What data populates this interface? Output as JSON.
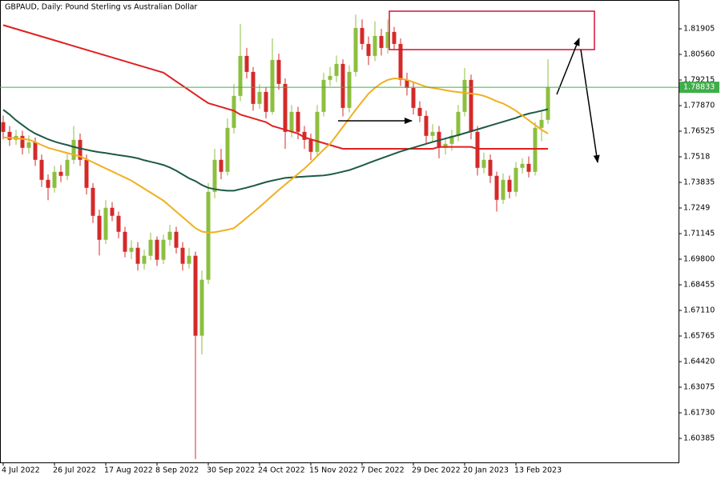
{
  "chart_data": {
    "type": "candlestick",
    "title": "GBPAUD, Daily:  Pound Sterling vs Australian Dollar",
    "categories": [
      "4 Jul 2022",
      null,
      null,
      null,
      null,
      null,
      null,
      null,
      "26 Jul 2022",
      null,
      null,
      null,
      null,
      null,
      null,
      null,
      "17 Aug 2022",
      null,
      null,
      null,
      null,
      null,
      null,
      null,
      "8 Sep 2022",
      null,
      null,
      null,
      null,
      null,
      null,
      null,
      "30 Sep 2022",
      null,
      null,
      null,
      null,
      null,
      null,
      null,
      "24 Oct 2022",
      null,
      null,
      null,
      null,
      null,
      null,
      null,
      "15 Nov 2022",
      null,
      null,
      null,
      null,
      null,
      null,
      null,
      "7 Dec 2022",
      null,
      null,
      null,
      null,
      null,
      null,
      null,
      "29 Dec 2022",
      null,
      null,
      null,
      null,
      null,
      null,
      null,
      "20 Jan 2023",
      null,
      null,
      null,
      null,
      null,
      null,
      null,
      "13 Feb 2023",
      null,
      null,
      null,
      null,
      null
    ],
    "open": [
      1.77,
      1.7649,
      1.7607,
      1.7628,
      1.7565,
      1.7594,
      1.7502,
      1.7397,
      1.7355,
      1.7439,
      1.7418,
      1.7502,
      1.7607,
      1.7502,
      1.7355,
      1.7208,
      1.7082,
      1.725,
      1.7208,
      1.7124,
      1.7019,
      1.704,
      1.6956,
      1.6998,
      1.7082,
      1.6977,
      1.7082,
      1.7124,
      1.704,
      1.6956,
      1.6998,
      1.6578,
      1.6872,
      1.7334,
      1.7502,
      1.7439,
      1.767,
      1.7838,
      1.8048,
      1.7964,
      1.7796,
      1.7859,
      1.7754,
      1.8027,
      1.7901,
      1.7649,
      1.7754,
      1.7649,
      1.7607,
      1.7544,
      1.7754,
      1.7922,
      1.7943,
      1.8006,
      1.7775,
      1.7964,
      1.8195,
      1.8111,
      1.8048,
      1.8153,
      1.809,
      1.8174,
      1.8111,
      1.7922,
      1.788,
      1.7775,
      1.7733,
      1.7628,
      1.7649,
      1.7565,
      1.7586,
      1.7628,
      1.7754,
      1.7922,
      1.7649,
      1.746,
      1.7502,
      1.7418,
      1.7292,
      1.7397,
      1.7334,
      1.746,
      1.7481,
      1.7439,
      1.767,
      1.7712
    ],
    "high": [
      1.7735,
      1.768,
      1.766,
      1.7655,
      1.763,
      1.762,
      1.753,
      1.7425,
      1.747,
      1.7475,
      1.754,
      1.768,
      1.764,
      1.753,
      1.738,
      1.724,
      1.729,
      1.728,
      1.723,
      1.715,
      1.708,
      1.707,
      1.703,
      1.712,
      1.71,
      1.711,
      1.716,
      1.715,
      1.707,
      1.704,
      1.702,
      1.692,
      1.738,
      1.756,
      1.756,
      1.772,
      1.79,
      1.8215,
      1.809,
      1.799,
      1.79,
      1.7885,
      1.814,
      1.806,
      1.793,
      1.779,
      1.778,
      1.768,
      1.764,
      1.779,
      1.796,
      1.799,
      1.805,
      1.803,
      1.8,
      1.8265,
      1.824,
      1.815,
      1.823,
      1.819,
      1.824,
      1.82,
      1.814,
      1.796,
      1.791,
      1.781,
      1.776,
      1.769,
      1.768,
      1.762,
      1.766,
      1.779,
      1.7985,
      1.795,
      1.768,
      1.754,
      1.753,
      1.744,
      1.743,
      1.742,
      1.749,
      1.751,
      1.752,
      1.77,
      1.776,
      1.803
    ],
    "low": [
      1.761,
      1.7575,
      1.758,
      1.753,
      1.7535,
      1.747,
      1.736,
      1.729,
      1.733,
      1.7385,
      1.7395,
      1.748,
      1.747,
      1.732,
      1.717,
      1.7,
      1.706,
      1.718,
      1.709,
      1.699,
      1.698,
      1.692,
      1.6925,
      1.6975,
      1.6945,
      1.6955,
      1.705,
      1.701,
      1.692,
      1.693,
      1.593,
      1.648,
      1.685,
      1.73,
      1.74,
      1.742,
      1.764,
      1.781,
      1.793,
      1.776,
      1.777,
      1.772,
      1.774,
      1.787,
      1.756,
      1.762,
      1.761,
      1.756,
      1.75,
      1.752,
      1.773,
      1.789,
      1.791,
      1.773,
      1.775,
      1.794,
      1.808,
      1.8,
      1.802,
      1.805,
      1.806,
      1.808,
      1.789,
      1.784,
      1.774,
      1.77,
      1.759,
      1.76,
      1.751,
      1.753,
      1.755,
      1.76,
      1.773,
      1.761,
      1.742,
      1.743,
      1.738,
      1.723,
      1.727,
      1.73,
      1.731,
      1.743,
      1.741,
      1.742,
      1.76,
      1.769
    ],
    "close": [
      1.7649,
      1.7607,
      1.7628,
      1.7565,
      1.7594,
      1.7502,
      1.7397,
      1.7355,
      1.7439,
      1.7418,
      1.7502,
      1.7607,
      1.7502,
      1.7355,
      1.7208,
      1.7082,
      1.725,
      1.7208,
      1.7124,
      1.7019,
      1.704,
      1.6956,
      1.6998,
      1.7082,
      1.6977,
      1.7082,
      1.7124,
      1.704,
      1.6956,
      1.6998,
      1.6578,
      1.6872,
      1.7334,
      1.7502,
      1.7439,
      1.767,
      1.7838,
      1.8048,
      1.7964,
      1.7796,
      1.7859,
      1.7754,
      1.8027,
      1.7901,
      1.7649,
      1.7754,
      1.7649,
      1.7607,
      1.7544,
      1.7754,
      1.7922,
      1.7943,
      1.8006,
      1.7775,
      1.7964,
      1.8195,
      1.8111,
      1.8048,
      1.8153,
      1.809,
      1.8174,
      1.8111,
      1.7922,
      1.788,
      1.7775,
      1.7733,
      1.7628,
      1.7649,
      1.7565,
      1.7586,
      1.7628,
      1.7754,
      1.7922,
      1.7649,
      1.746,
      1.7502,
      1.7418,
      1.7292,
      1.7397,
      1.7334,
      1.746,
      1.7481,
      1.7439,
      1.767,
      1.7712,
      1.7883
    ],
    "up_color": "#8cbf3f",
    "down_color": "#d42a2a",
    "lines": [
      {
        "color": "#e02020",
        "values": [
          1.821,
          1.82,
          1.819,
          1.818,
          1.817,
          1.816,
          1.815,
          1.814,
          1.813,
          1.812,
          1.811,
          1.81,
          1.809,
          1.808,
          1.807,
          1.806,
          1.805,
          1.804,
          1.803,
          1.802,
          1.801,
          1.8,
          1.799,
          1.798,
          1.797,
          1.796,
          1.7937,
          1.7914,
          1.7891,
          1.7868,
          1.7845,
          1.7822,
          1.78,
          1.779,
          1.778,
          1.777,
          1.776,
          1.774,
          1.773,
          1.772,
          1.771,
          1.77,
          1.768,
          1.767,
          1.766,
          1.765,
          1.764,
          1.762,
          1.761,
          1.76,
          1.759,
          1.758,
          1.757,
          1.756,
          1.756,
          1.756,
          1.756,
          1.756,
          1.756,
          1.756,
          1.756,
          1.756,
          1.756,
          1.756,
          1.756,
          1.756,
          1.756,
          1.756,
          1.757,
          1.757,
          1.757,
          1.757,
          1.757,
          1.757,
          1.756,
          1.756,
          1.756,
          1.756,
          1.756,
          1.756,
          1.756,
          1.756,
          1.756,
          1.756,
          1.756,
          1.756
        ]
      },
      {
        "color": "#1d5a45",
        "values": [
          1.7765,
          1.774,
          1.771,
          1.7685,
          1.766,
          1.764,
          1.7625,
          1.761,
          1.7598,
          1.7588,
          1.758,
          1.757,
          1.7562,
          1.7555,
          1.7548,
          1.7542,
          1.7538,
          1.7532,
          1.7527,
          1.7522,
          1.7517,
          1.751,
          1.75,
          1.7492,
          1.7484,
          1.7475,
          1.7462,
          1.7445,
          1.7425,
          1.7405,
          1.739,
          1.737,
          1.7355,
          1.7348,
          1.7343,
          1.734,
          1.734,
          1.7348,
          1.7356,
          1.7365,
          1.7375,
          1.7385,
          1.7393,
          1.74,
          1.7407,
          1.741,
          1.7412,
          1.7414,
          1.7416,
          1.7418,
          1.742,
          1.7425,
          1.7432,
          1.744,
          1.7448,
          1.746,
          1.7472,
          1.7485,
          1.7498,
          1.751,
          1.7522,
          1.7534,
          1.7546,
          1.7556,
          1.7566,
          1.7576,
          1.7586,
          1.7596,
          1.7605,
          1.7614,
          1.7623,
          1.7632,
          1.7642,
          1.7652,
          1.7662,
          1.7672,
          1.7682,
          1.7692,
          1.7702,
          1.7712,
          1.7722,
          1.7735,
          1.7745,
          1.7752,
          1.776,
          1.7768
        ]
      },
      {
        "color": "#f0b020",
        "values": [
          1.762,
          1.7618,
          1.7615,
          1.7612,
          1.7608,
          1.7595,
          1.758,
          1.7565,
          1.7556,
          1.7547,
          1.7538,
          1.7529,
          1.752,
          1.7505,
          1.7489,
          1.7473,
          1.7457,
          1.7441,
          1.7425,
          1.7409,
          1.7393,
          1.7372,
          1.7351,
          1.733,
          1.7309,
          1.7288,
          1.7259,
          1.723,
          1.7201,
          1.7172,
          1.7143,
          1.7125,
          1.712,
          1.7122,
          1.7128,
          1.7135,
          1.7143,
          1.717,
          1.7198,
          1.7226,
          1.7254,
          1.7284,
          1.7314,
          1.7344,
          1.7372,
          1.74,
          1.7428,
          1.7456,
          1.7488,
          1.7522,
          1.7556,
          1.7586,
          1.763,
          1.7675,
          1.772,
          1.7765,
          1.7808,
          1.785,
          1.788,
          1.7905,
          1.7922,
          1.793,
          1.7928,
          1.7922,
          1.791,
          1.7898,
          1.7886,
          1.788,
          1.7874,
          1.7868,
          1.7862,
          1.7858,
          1.7854,
          1.785,
          1.7846,
          1.7838,
          1.7825,
          1.781,
          1.7798,
          1.778,
          1.776,
          1.7735,
          1.771,
          1.7685,
          1.766,
          1.764
        ]
      }
    ],
    "current_price": 1.78833,
    "current_price_color": "#3fae49",
    "ylim": [
      1.59124,
      1.83418
    ],
    "yticks": [
      1.81905,
      {
        "value": 1.8056,
        "label": "1.80560"
      },
      1.79215,
      {
        "value": 1.7787,
        "label": "1.77870"
      },
      1.76525,
      1.7518,
      1.73835,
      1.7249,
      1.71145,
      {
        "value": 1.698,
        "label": "1.69800"
      },
      1.68455,
      {
        "value": 1.6711,
        "label": "1.67110"
      },
      1.65765,
      {
        "value": 1.6442,
        "label": "1.64420"
      },
      1.63075,
      {
        "value": 1.6173,
        "label": "1.61730"
      },
      1.60385
    ]
  }
}
